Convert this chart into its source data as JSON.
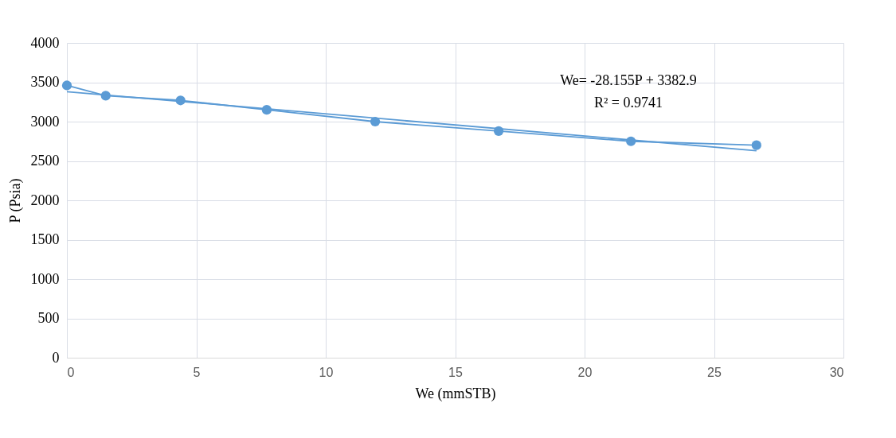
{
  "chart_data": {
    "type": "line",
    "xlabel": "We (mmSTB)",
    "ylabel": "P (Psia)",
    "xlim": [
      0,
      30
    ],
    "xticks": [
      0,
      5,
      10,
      15,
      20,
      25,
      30
    ],
    "ylim": [
      0,
      4000
    ],
    "yticks": [
      0,
      500,
      1000,
      1500,
      2000,
      2500,
      3000,
      3500,
      4000
    ],
    "grid": true,
    "marker": "circle",
    "line_style": "solid",
    "series": [
      {
        "color": "#5b9bd5",
        "x": [
          0,
          1.5,
          4.39,
          7.72,
          11.91,
          16.68,
          21.79,
          26.64
        ],
        "values": [
          3460,
          3330,
          3270,
          3150,
          3000,
          2880,
          2750,
          2700
        ]
      },
      {
        "type": "line",
        "marker": "none",
        "color": "#5b9bd5",
        "x": [
          0,
          26.64
        ],
        "values": [
          3380,
          2630
        ]
      }
    ],
    "annotations": [
      "We= -28.155P + 3382.9",
      "R² = 0.9741"
    ]
  }
}
